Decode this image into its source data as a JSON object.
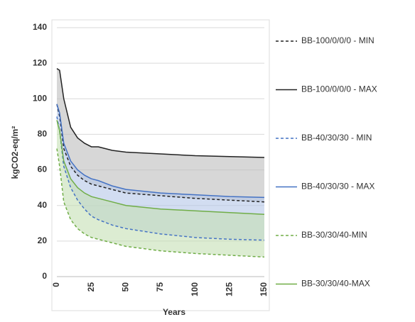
{
  "chart_data": {
    "type": "line",
    "y_label": "kgCO2-eq/m²",
    "x_label": "Years",
    "x": [
      0,
      2,
      5,
      10,
      15,
      20,
      25,
      30,
      40,
      50,
      75,
      100,
      125,
      150
    ],
    "xlim": [
      0,
      150
    ],
    "xticks": [
      0,
      25,
      50,
      75,
      100,
      125,
      150
    ],
    "ylim": [
      0,
      140
    ],
    "yticks": [
      0,
      20,
      40,
      60,
      80,
      100,
      120,
      140
    ],
    "grid": true,
    "series": [
      {
        "name": "BB-100/0/0/0 - MIN",
        "color": "#222222",
        "dash": true,
        "values": [
          97,
          90,
          72,
          62,
          57,
          54,
          52,
          51,
          49,
          47,
          45.5,
          44,
          43,
          42
        ]
      },
      {
        "name": "BB-100/0/0/0 - MAX",
        "color": "#222222",
        "dash": false,
        "fill": "#bdbdbd",
        "values": [
          117,
          116,
          100,
          84,
          78,
          75,
          73,
          73,
          71,
          70,
          69,
          68,
          67.5,
          67
        ]
      },
      {
        "name": "BB-40/30/30 - MIN",
        "color": "#4472c4",
        "dash": true,
        "values": [
          90,
          82,
          62,
          50,
          43,
          38,
          34,
          32,
          29,
          27,
          24,
          22,
          21,
          20.5
        ]
      },
      {
        "name": "BB-40/30/30 - MAX",
        "color": "#4472c4",
        "dash": false,
        "fill": "#b4c7e7",
        "values": [
          97,
          92,
          75,
          65,
          60,
          57,
          55,
          54,
          51,
          49,
          47,
          46,
          45,
          44.5
        ]
      },
      {
        "name": "BB-30/30/40-MIN",
        "color": "#70ad47",
        "dash": true,
        "values": [
          72,
          62,
          42,
          32,
          27,
          24,
          22,
          21,
          19,
          17,
          14.5,
          13,
          12,
          11
        ]
      },
      {
        "name": "BB-30/30/40-MAX",
        "color": "#70ad47",
        "dash": false,
        "fill": "#c5e0b4",
        "values": [
          88,
          82,
          65,
          55,
          50,
          47,
          45,
          44,
          42,
          40,
          38,
          37,
          36,
          35
        ]
      }
    ]
  }
}
